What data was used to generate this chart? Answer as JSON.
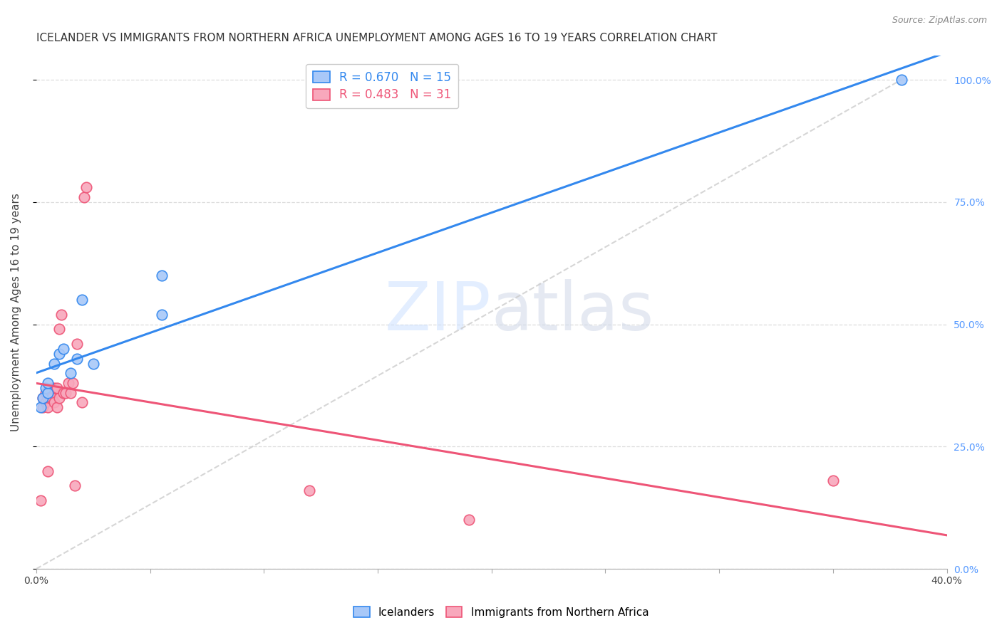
{
  "title": "ICELANDER VS IMMIGRANTS FROM NORTHERN AFRICA UNEMPLOYMENT AMONG AGES 16 TO 19 YEARS CORRELATION CHART",
  "source": "Source: ZipAtlas.com",
  "ylabel": "Unemployment Among Ages 16 to 19 years",
  "xlabel": "",
  "xlim": [
    0.0,
    0.4
  ],
  "ylim": [
    0.0,
    1.05
  ],
  "xticks": [
    0.0,
    0.05,
    0.1,
    0.15,
    0.2,
    0.25,
    0.3,
    0.35,
    0.4
  ],
  "yticks": [
    0.0,
    0.25,
    0.5,
    0.75,
    1.0
  ],
  "xtick_labels": [
    "0.0%",
    "",
    "",
    "",
    "",
    "",
    "",
    "",
    "40.0%"
  ],
  "right_ytick_labels": [
    "0.0%",
    "25.0%",
    "50.0%",
    "75.0%",
    "100.0%"
  ],
  "background_color": "#ffffff",
  "grid_color": "#dddddd",
  "icelanders_color": "#a8c8f8",
  "immigrants_color": "#f8a8bc",
  "icelanders_line_color": "#3388ee",
  "immigrants_line_color": "#ee5577",
  "R_icelanders": 0.67,
  "N_icelanders": 15,
  "R_immigrants": 0.483,
  "N_immigrants": 31,
  "icelanders_x": [
    0.002,
    0.003,
    0.004,
    0.005,
    0.005,
    0.008,
    0.01,
    0.012,
    0.015,
    0.018,
    0.02,
    0.025,
    0.055,
    0.055,
    0.38
  ],
  "icelanders_y": [
    0.33,
    0.35,
    0.37,
    0.36,
    0.38,
    0.42,
    0.44,
    0.45,
    0.4,
    0.43,
    0.55,
    0.42,
    0.52,
    0.6,
    1.0
  ],
  "immigrants_x": [
    0.002,
    0.003,
    0.003,
    0.004,
    0.004,
    0.005,
    0.005,
    0.005,
    0.006,
    0.007,
    0.007,
    0.008,
    0.008,
    0.009,
    0.009,
    0.01,
    0.01,
    0.011,
    0.012,
    0.013,
    0.014,
    0.015,
    0.016,
    0.017,
    0.018,
    0.02,
    0.021,
    0.022,
    0.12,
    0.19,
    0.35
  ],
  "immigrants_y": [
    0.14,
    0.33,
    0.35,
    0.34,
    0.36,
    0.35,
    0.33,
    0.2,
    0.35,
    0.35,
    0.37,
    0.34,
    0.37,
    0.37,
    0.33,
    0.35,
    0.49,
    0.52,
    0.36,
    0.36,
    0.38,
    0.36,
    0.38,
    0.17,
    0.46,
    0.34,
    0.76,
    0.78,
    0.16,
    0.1,
    0.18
  ],
  "watermark_zip": "ZIP",
  "watermark_atlas": "atlas",
  "marker_size": 110,
  "title_fontsize": 11,
  "label_fontsize": 11,
  "tick_fontsize": 10,
  "legend_fontsize": 12,
  "right_ytick_color": "#5599ff",
  "diag_line_color": "#cccccc"
}
